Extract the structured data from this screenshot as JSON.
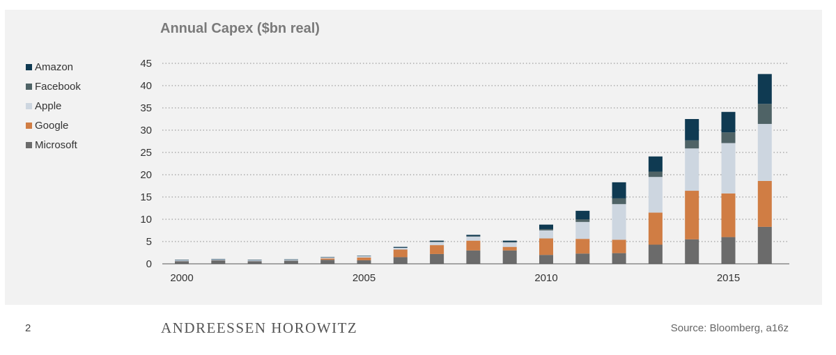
{
  "page": {
    "number": "2",
    "brand": "ANDREESSEN HOROWITZ",
    "source": "Source: Bloomberg, a16z"
  },
  "chart_data": {
    "type": "bar",
    "stacked": true,
    "title": "Annual Capex ($bn real)",
    "xlabel": "",
    "ylabel": "",
    "ylim": [
      0,
      45
    ],
    "yticks": [
      0,
      5,
      10,
      15,
      20,
      25,
      30,
      35,
      40,
      45
    ],
    "grid": "horizontal dotted",
    "legend_position": "left",
    "x": [
      2000,
      2001,
      2002,
      2003,
      2004,
      2005,
      2006,
      2007,
      2008,
      2009,
      2010,
      2011,
      2012,
      2013,
      2014,
      2015,
      2016
    ],
    "xtick_labels": [
      "2000",
      "2005",
      "2010",
      "2015"
    ],
    "xtick_years": [
      2000,
      2005,
      2010,
      2015
    ],
    "series": [
      {
        "name": "Microsoft",
        "color": "#6b6b6b",
        "values": [
          0.6,
          0.8,
          0.6,
          0.7,
          0.9,
          0.8,
          1.5,
          2.2,
          3.0,
          3.0,
          2.0,
          2.3,
          2.4,
          4.3,
          5.5,
          6.0,
          8.3
        ]
      },
      {
        "name": "Google",
        "color": "#d07d44",
        "values": [
          0.0,
          0.0,
          0.0,
          0.0,
          0.3,
          0.6,
          1.7,
          2.0,
          2.2,
          0.8,
          3.7,
          3.3,
          3.0,
          7.2,
          10.9,
          9.8,
          10.3
        ]
      },
      {
        "name": "Apple",
        "color": "#cdd6e0",
        "values": [
          0.2,
          0.2,
          0.2,
          0.2,
          0.2,
          0.3,
          0.4,
          0.7,
          0.9,
          1.0,
          1.8,
          3.8,
          8.0,
          8.0,
          9.5,
          11.3,
          12.8
        ]
      },
      {
        "name": "Facebook",
        "color": "#4f6366",
        "values": [
          0.0,
          0.0,
          0.0,
          0.0,
          0.0,
          0.0,
          0.0,
          0.1,
          0.1,
          0.1,
          0.3,
          0.6,
          1.3,
          1.2,
          1.8,
          2.4,
          4.5
        ]
      },
      {
        "name": "Amazon",
        "color": "#0f3a52",
        "values": [
          0.1,
          0.1,
          0.1,
          0.1,
          0.1,
          0.1,
          0.2,
          0.2,
          0.3,
          0.3,
          1.0,
          1.9,
          3.6,
          3.4,
          4.8,
          4.6,
          6.7
        ]
      }
    ]
  }
}
